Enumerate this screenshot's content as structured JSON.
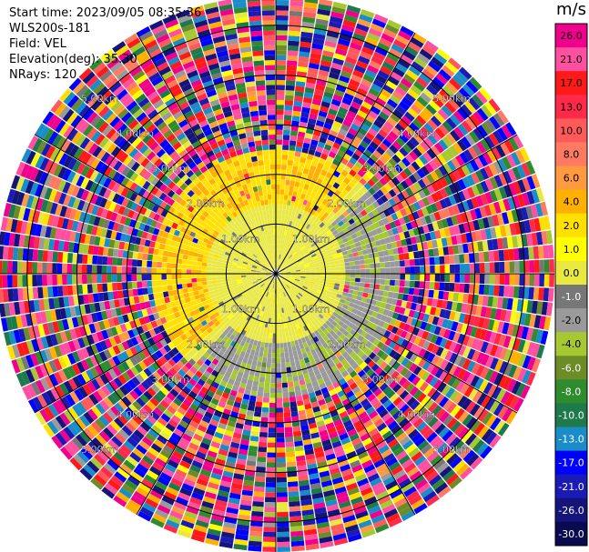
{
  "header": {
    "start_time": "Start time: 2023/09/05 08:35:36",
    "instrument": "WLS200s-181",
    "field": "Field: VEL",
    "elevation": "Elevation(deg): 35.30",
    "nrays": "NRays: 120"
  },
  "chart_data": {
    "type": "ppi",
    "field": "VEL",
    "units": "m/s",
    "n_rays": 120,
    "elevation_deg": 35.3,
    "range_rings_km": [
      1.0,
      2.0,
      3.0,
      4.0,
      5.0
    ],
    "ring_labels": [
      "1.00km",
      "2.00km",
      "3.00km",
      "4.00km",
      "5.00km"
    ],
    "max_range_km": 5.6,
    "azimuth_lines_deg": [
      0,
      30,
      60,
      90,
      120,
      150,
      180,
      210,
      240,
      270,
      300,
      330
    ],
    "colorbar": {
      "title": "m/s",
      "ticks": [
        "26.0",
        "21.0",
        "17.0",
        "13.0",
        "10.0",
        "8.0",
        "6.0",
        "4.0",
        "2.0",
        "1.0",
        "0.0",
        "-1.0",
        "-2.0",
        "-4.0",
        "-6.0",
        "-8.0",
        "-10.0",
        "-13.0",
        "-17.0",
        "-21.0",
        "-26.0",
        "-30.0"
      ],
      "colors": [
        "#f0008c",
        "#ff4fa0",
        "#ff1a1a",
        "#ff2a4a",
        "#ff5a5a",
        "#ff7a60",
        "#ff9a40",
        "#ffb000",
        "#ffe000",
        "#ffff00",
        "#e8e840",
        "#777777",
        "#9a9a9a",
        "#a6c832",
        "#6c8c28",
        "#2e8b2e",
        "#1e7a4a",
        "#1a8cc8",
        "#0000ff",
        "#1a1ab4",
        "#14147a",
        "#0a0a50"
      ]
    },
    "radial_velocity_pattern": "near-zero (grey) within ~1.5 km; positive 1-4 m/s (yellow) to the north and west, negative -2 to -4 m/s (olive green) to the south and east, out to ~2.5 km; noisy full-scale values beyond ~2.5 km"
  }
}
